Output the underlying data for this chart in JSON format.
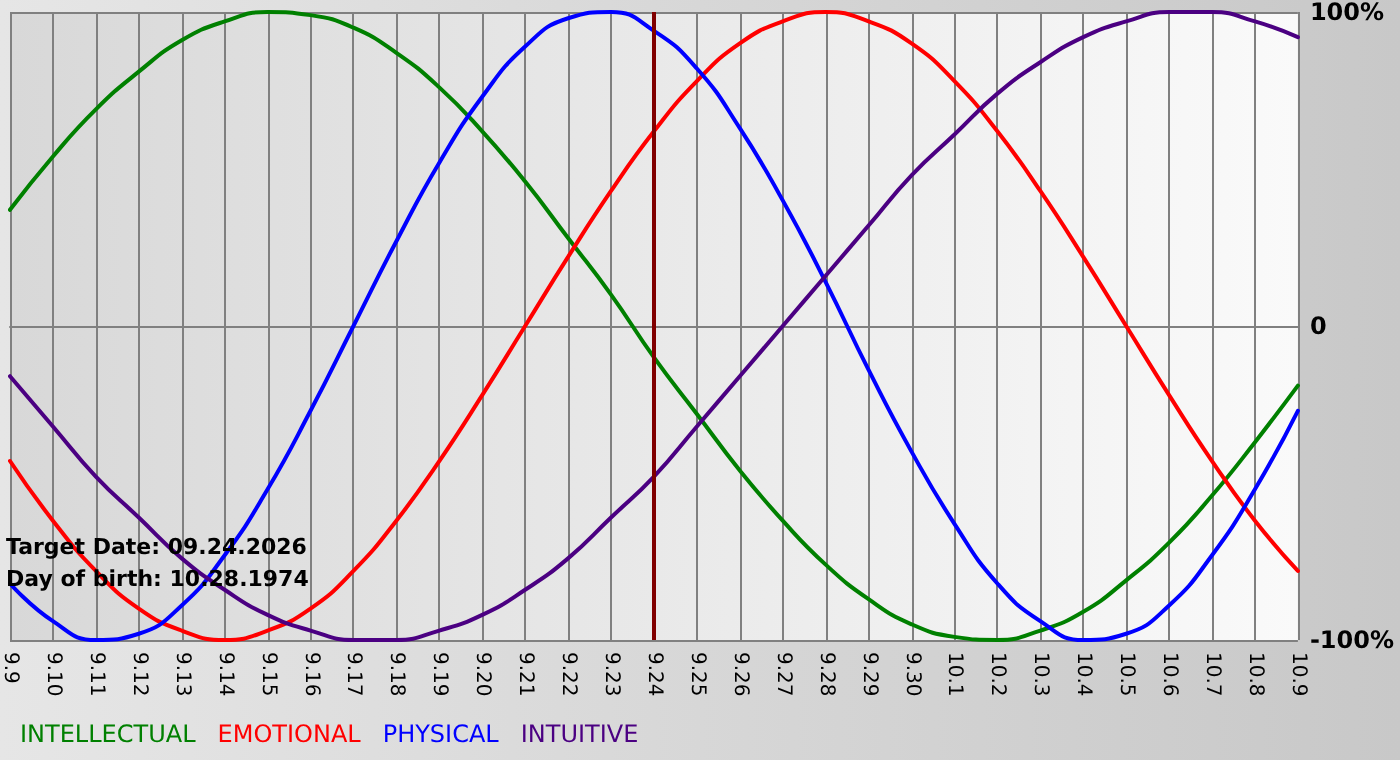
{
  "chart_data": {
    "type": "line",
    "categories": [
      "9.9",
      "9.10",
      "9.11",
      "9.12",
      "9.13",
      "9.14",
      "9.15",
      "9.16",
      "9.17",
      "9.18",
      "9.19",
      "9.20",
      "9.21",
      "9.22",
      "9.23",
      "9.24",
      "9.25",
      "9.26",
      "9.27",
      "9.28",
      "9.29",
      "9.30",
      "10.1",
      "10.2",
      "10.3",
      "10.4",
      "10.5",
      "10.6",
      "10.7",
      "10.8",
      "10.9"
    ],
    "series": [
      {
        "name": "INTELLECTUAL",
        "color": "#008000",
        "values": [
          37,
          54,
          69,
          81,
          91,
          97,
          100,
          99,
          95,
          87,
          76,
          62,
          46,
          28,
          10,
          -10,
          -28,
          -46,
          -62,
          -76,
          -87,
          -95,
          -99,
          -100,
          -97,
          -91,
          -81,
          -69,
          -54,
          -37,
          -19
        ]
      },
      {
        "name": "EMOTIONAL",
        "color": "#ff0000",
        "values": [
          -43,
          -62,
          -78,
          -90,
          -97,
          -100,
          -97,
          -90,
          -78,
          -62,
          -43,
          -22,
          0,
          22,
          43,
          62,
          78,
          90,
          97,
          100,
          97,
          90,
          78,
          62,
          43,
          22,
          0,
          -22,
          -43,
          -62,
          -78
        ]
      },
      {
        "name": "PHYSICAL",
        "color": "#0000ff",
        "values": [
          -82,
          -94,
          -100,
          -98,
          -89,
          -73,
          -52,
          -27,
          0,
          27,
          52,
          73,
          89,
          98,
          100,
          94,
          82,
          63,
          40,
          14,
          -14,
          -40,
          -63,
          -82,
          -94,
          -100,
          -98,
          -89,
          -73,
          -52,
          -27
        ]
      },
      {
        "name": "INTUITIVE",
        "color": "#4b0082",
        "values": [
          -16,
          -32,
          -48,
          -61,
          -74,
          -84,
          -92,
          -97,
          -100,
          -100,
          -97,
          -92,
          -84,
          -74,
          -61,
          -48,
          -32,
          -16,
          0,
          16,
          32,
          48,
          61,
          74,
          84,
          92,
          97,
          100,
          100,
          97,
          92
        ]
      }
    ],
    "ylim": [
      -100,
      100
    ],
    "yticks": [
      {
        "value": -100,
        "label": "-100%"
      },
      {
        "value": 0,
        "label": "0"
      },
      {
        "value": 100,
        "label": "100%"
      }
    ],
    "ref_lines": [
      {
        "axis": "x",
        "value": "9.24",
        "color": "#800000"
      }
    ],
    "annotations": [
      "Target Date: 09.24.2026",
      "Day of birth: 10.28.1974"
    ],
    "grid": true,
    "legend": "bottom left",
    "marker": "none",
    "line_style": "solid"
  }
}
